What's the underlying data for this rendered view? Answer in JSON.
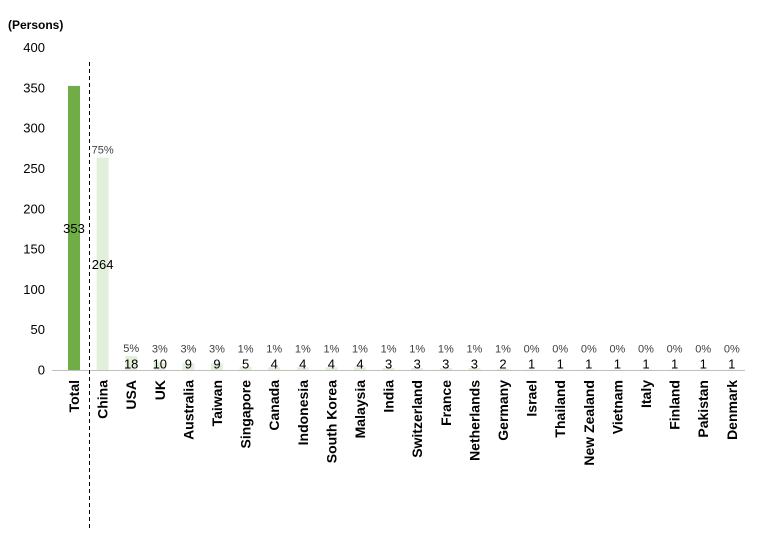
{
  "chart_data": {
    "type": "bar",
    "unit_label": "(Persons)",
    "ylim": [
      0,
      400
    ],
    "yticks": [
      0,
      50,
      100,
      150,
      200,
      250,
      300,
      350,
      400
    ],
    "grid": false,
    "categories": [
      "Total",
      "China",
      "USA",
      "UK",
      "Australia",
      "Taiwan",
      "Singapore",
      "Canada",
      "Indonesia",
      "South Korea",
      "Malaysia",
      "India",
      "Switzerland",
      "France",
      "Netherlands",
      "Germany",
      "Israel",
      "Thailand",
      "New Zealand",
      "Vietnam",
      "Italy",
      "Finland",
      "Pakistan",
      "Denmark"
    ],
    "values": [
      353,
      264,
      18,
      10,
      9,
      9,
      5,
      4,
      4,
      4,
      4,
      3,
      3,
      3,
      3,
      2,
      1,
      1,
      1,
      1,
      1,
      1,
      1,
      1
    ],
    "value_labels": [
      "353",
      "264",
      "18",
      "10",
      "9",
      "9",
      "5",
      "4",
      "4",
      "4",
      "4",
      "3",
      "3",
      "3",
      "3",
      "2",
      "1",
      "1",
      "1",
      "1",
      "1",
      "1",
      "1",
      "1"
    ],
    "percent_labels": [
      "",
      "75%",
      "5%",
      "3%",
      "3%",
      "3%",
      "1%",
      "1%",
      "1%",
      "1%",
      "1%",
      "1%",
      "1%",
      "1%",
      "1%",
      "1%",
      "0%",
      "0%",
      "0%",
      "0%",
      "0%",
      "0%",
      "0%",
      "0%"
    ],
    "colors": {
      "total": "#70ad47",
      "country": "#e2efda",
      "divider": "#000000",
      "axis": "#bfbfbf",
      "text": "#000000",
      "percent_text": "#404040"
    }
  }
}
